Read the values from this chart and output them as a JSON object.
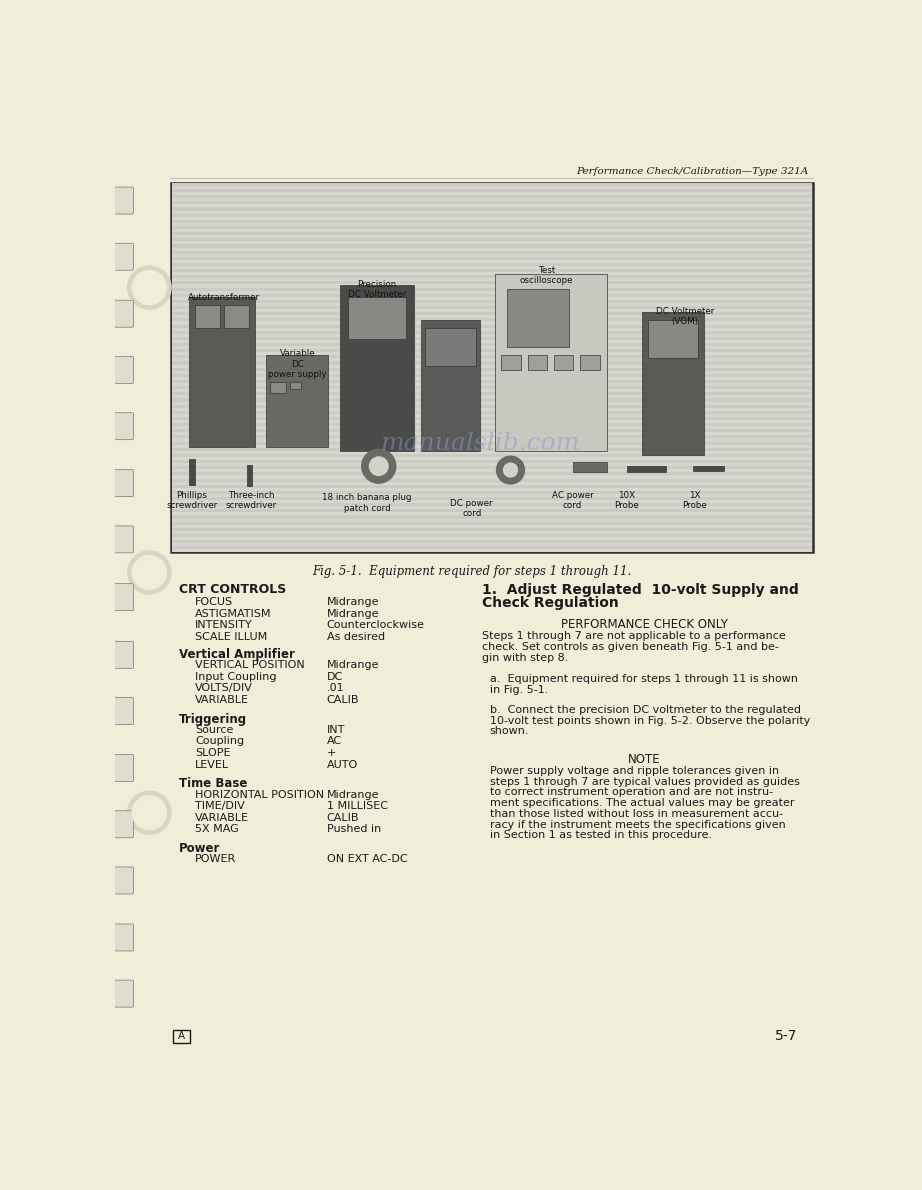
{
  "page_bg": "#f0edd8",
  "header_text": "Performance Check/Calibration—Type 321A",
  "fig_caption": "Fig. 5-1.  Equipment required for steps 1 through 11.",
  "left_col_title": "CRT CONTROLS",
  "left_col_items": [
    {
      "label": "FOCUS",
      "value": "Midrange"
    },
    {
      "label": "ASTIGMATISM",
      "value": "Midrange"
    },
    {
      "label": "INTENSITY",
      "value": "Counterclockwise"
    },
    {
      "label": "SCALE ILLUM",
      "value": "As desired"
    }
  ],
  "left_col_sections": [
    {
      "title": "Vertical Amplifier",
      "items": [
        {
          "label": "VERTICAL POSITION",
          "value": "Midrange"
        },
        {
          "label": "Input Coupling",
          "value": "DC"
        },
        {
          "label": "VOLTS/DIV",
          "value": ".01"
        },
        {
          "label": "VARIABLE",
          "value": "CALIB"
        }
      ]
    },
    {
      "title": "Triggering",
      "items": [
        {
          "label": "Source",
          "value": "INT"
        },
        {
          "label": "Coupling",
          "value": "AC"
        },
        {
          "label": "SLOPE",
          "value": "+"
        },
        {
          "label": "LEVEL",
          "value": "AUTO"
        }
      ]
    },
    {
      "title": "Time Base",
      "items": [
        {
          "label": "HORIZONTAL POSITION",
          "value": "Midrange"
        },
        {
          "label": "TIME/DIV",
          "value": "1 MILLISEC"
        },
        {
          "label": "VARIABLE",
          "value": "CALIB"
        },
        {
          "label": "5X MAG",
          "value": "Pushed in"
        }
      ]
    },
    {
      "title": "Power",
      "items": [
        {
          "label": "POWER",
          "value": "ON EXT AC-DC"
        }
      ]
    }
  ],
  "right_col_title_line1": "1.  Adjust Regulated  10-volt Supply and",
  "right_col_title_line2": "Check Regulation",
  "perf_check_header": "PERFORMANCE CHECK ONLY",
  "perf_check_text": "Steps 1 through 7 are not applicable to a performance\ncheck. Set controls as given beneath Fig. 5-1 and be-\ngin with step 8.",
  "step_a_text": "a.  Equipment required for steps 1 through 11 is shown\nin Fig. 5-1.",
  "step_b_text": "b.  Connect the precision DC voltmeter to the regulated\n10-volt test points shown in Fig. 5-2. Observe the polarity\nshown.",
  "note_header": "NOTE",
  "note_text": "Power supply voltage and ripple tolerances given in\nsteps 1 through 7 are typical values provided as guides\nto correct instrument operation and are not instru-\nment specifications. The actual values may be greater\nthan those listed without loss in measurement accu-\nracy if the instrument meets the specifications given\nin Section 1 as tested in this procedure.",
  "page_number": "5-7",
  "box_label": "A",
  "watermark_text": "manualslib.com",
  "watermark_color": "#8899cc",
  "text_color": "#1a1a1a",
  "photo_bg": "#c8c8c0",
  "photo_stripe1": "#c0c0b8",
  "photo_stripe2": "#d0cfc8",
  "photo_border": "#333333",
  "hole_color": "#e8e5d0",
  "hole_border": "#999988",
  "tab_color": "#e0ddd0",
  "tab_border": "#888880"
}
